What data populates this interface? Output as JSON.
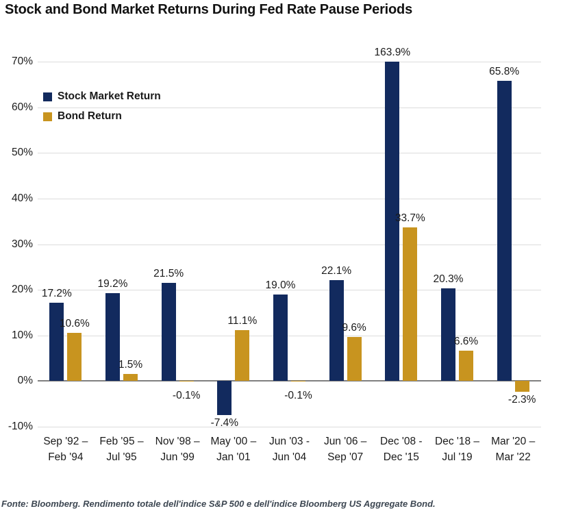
{
  "title": "Stock and Bond Market Returns During Fed Rate Pause Periods",
  "footer": "Fonte: Bloomberg. Rendimento totale dell'indice S&P 500 e dell'indice Bloomberg US Aggregate Bond.",
  "colors": {
    "stock": "#122a5e",
    "bond": "#c8941f",
    "gridline": "#dcdcdc",
    "zero_axis": "#7f7f7f",
    "text": "#1a1a1a",
    "footer_text": "#3d4752"
  },
  "legend": {
    "items": [
      {
        "label": "Stock Market Return",
        "series": "stock"
      },
      {
        "label": "Bond Return",
        "series": "bond"
      }
    ]
  },
  "chart_data": {
    "type": "bar",
    "title": "Stock and Bond Market Returns During Fed Rate Pause Periods",
    "categories": [
      [
        "Sep '92 –",
        "Feb '94"
      ],
      [
        "Feb '95 –",
        "Jul '95"
      ],
      [
        "Nov '98 –",
        "Jun '99"
      ],
      [
        "May '00 –",
        "Jan '01"
      ],
      [
        "Jun '03 -",
        "Jun '04"
      ],
      [
        "Jun '06 –",
        "Sep '07"
      ],
      [
        "Dec '08 -",
        "Dec '15"
      ],
      [
        "Dec '18 –",
        "Jul '19"
      ],
      [
        "Mar '20 –",
        "Mar '22"
      ]
    ],
    "series": [
      {
        "name": "Stock Market Return",
        "color": "#122a5e",
        "values": [
          17.2,
          19.2,
          21.5,
          -7.4,
          19.0,
          22.1,
          163.9,
          20.3,
          65.8
        ],
        "labels": [
          "17.2%",
          "19.2%",
          "21.5%",
          "-7.4%",
          "19.0%",
          "22.1%",
          "163.9%",
          "20.3%",
          "65.8%"
        ]
      },
      {
        "name": "Bond Return",
        "color": "#c8941f",
        "values": [
          10.6,
          1.5,
          -0.1,
          11.1,
          -0.1,
          9.6,
          33.7,
          6.6,
          -2.3
        ],
        "labels": [
          "10.6%",
          "1.5%",
          "-0.1%",
          "11.1%",
          "-0.1%",
          "9.6%",
          "33.7%",
          "6.6%",
          "-2.3%"
        ]
      }
    ],
    "xlabel": "",
    "ylabel": "",
    "ylim": [
      -10,
      70
    ],
    "yticks": [
      {
        "value": 70,
        "label": "70%"
      },
      {
        "value": 60,
        "label": "60%"
      },
      {
        "value": 50,
        "label": "50%"
      },
      {
        "value": 40,
        "label": "40%"
      },
      {
        "value": 30,
        "label": "30%"
      },
      {
        "value": 20,
        "label": "20%"
      },
      {
        "value": 10,
        "label": "10%"
      },
      {
        "value": 0,
        "label": "0%"
      },
      {
        "value": -10,
        "label": "-10%"
      }
    ],
    "grid": true,
    "legend_position": "top-left-inside",
    "bars_clipped_at_ymax": [
      "163.9%"
    ]
  }
}
